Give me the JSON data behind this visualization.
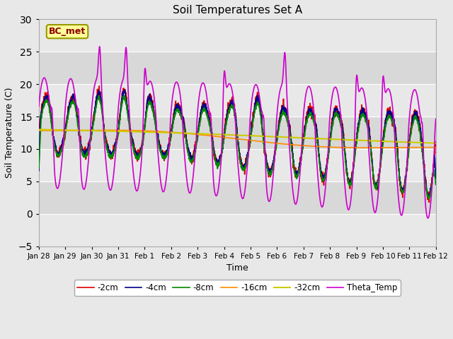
{
  "title": "Soil Temperatures Set A",
  "xlabel": "Time",
  "ylabel": "Soil Temperature (C)",
  "ylim": [
    -5,
    30
  ],
  "annotation": "BC_met",
  "background_color": "#e8e8e8",
  "plot_bg_color": "#d8d8d8",
  "grid_color": "#ffffff",
  "legend_entries": [
    "-2cm",
    "-4cm",
    "-8cm",
    "-16cm",
    "-32cm",
    "Theta_Temp"
  ],
  "line_colors": [
    "#dd0000",
    "#00008b",
    "#008800",
    "#ff8c00",
    "#cccc00",
    "#cc00cc"
  ],
  "line_widths": [
    1.2,
    1.2,
    1.2,
    1.2,
    1.5,
    1.2
  ],
  "xtick_labels": [
    "Jan 28",
    "Jan 29",
    "Jan 30",
    "Jan 31",
    "Feb 1",
    "Feb 2",
    "Feb 3",
    "Feb 4",
    "Feb 5",
    "Feb 6",
    "Feb 7",
    "Feb 8",
    "Feb 9",
    "Feb 10",
    "Feb 11",
    "Feb 12"
  ],
  "xtick_positions": [
    0,
    1,
    2,
    3,
    4,
    5,
    6,
    7,
    8,
    9,
    10,
    11,
    12,
    13,
    14,
    15
  ],
  "ytick_positions": [
    -5,
    0,
    5,
    10,
    15,
    20,
    25,
    30
  ]
}
